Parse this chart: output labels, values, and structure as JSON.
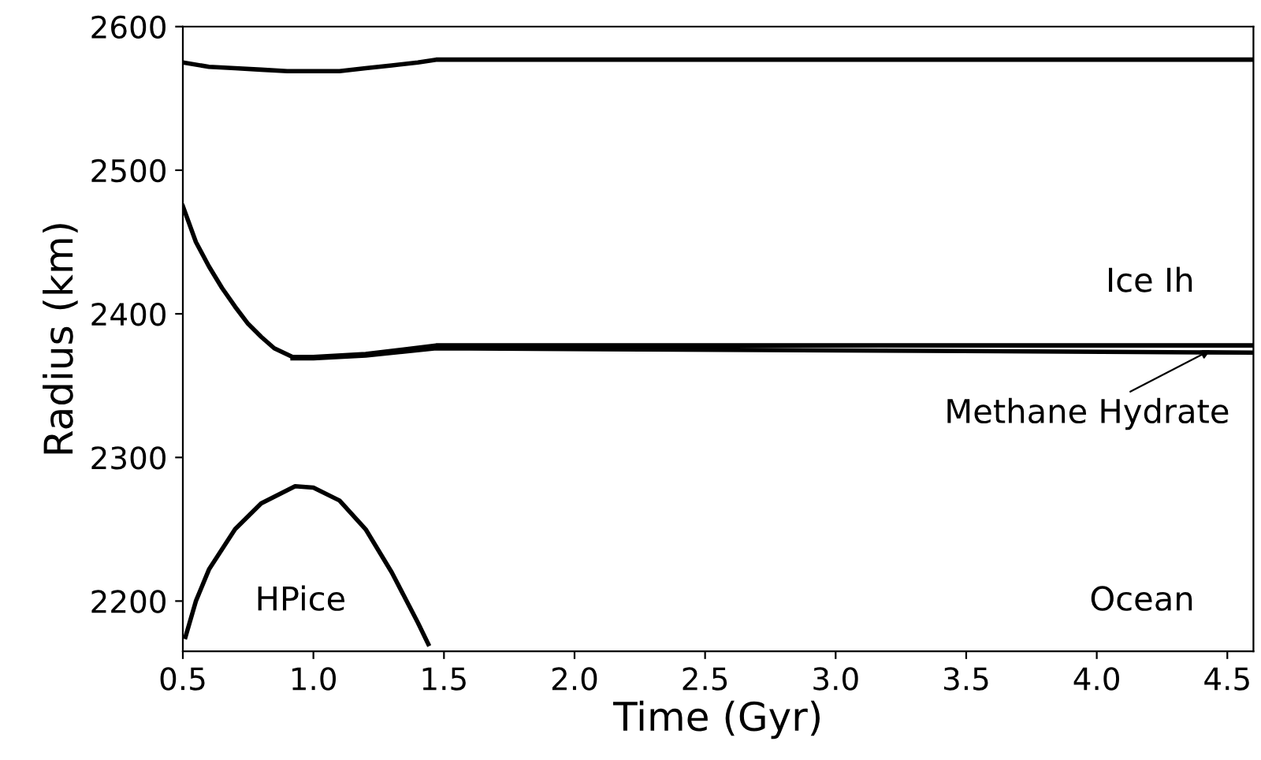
{
  "chart_data": {
    "type": "line",
    "xlabel": "Time (Gyr)",
    "ylabel": "Radius (km)",
    "xlim": [
      0.5,
      4.6
    ],
    "xticks": [
      0.5,
      {
        "value": 1,
        "label": "1.0"
      },
      1.5,
      {
        "value": 2,
        "label": "2.0"
      },
      2.5,
      {
        "value": 3,
        "label": "3.0"
      },
      3.5,
      {
        "value": 4,
        "label": "4.0"
      },
      4.5
    ],
    "ylim": [
      2165,
      2600
    ],
    "yticks": [
      2200,
      2300,
      2400,
      2500,
      2600
    ],
    "grid": false,
    "legend": false,
    "marker": "none",
    "line_style": "solid",
    "series": [
      {
        "color": "#000000",
        "x": [
          0.5,
          0.6,
          0.7,
          0.8,
          0.9,
          1.0,
          1.1,
          1.2,
          1.3,
          1.4,
          1.47,
          4.6
        ],
        "values": [
          2575,
          2572,
          2571,
          2570,
          2569,
          2569,
          2569,
          2571,
          2573,
          2575,
          2577,
          2577
        ]
      },
      {
        "color": "#000000",
        "x": [
          0.5,
          0.55,
          0.6,
          0.65,
          0.7,
          0.75,
          0.8,
          0.85,
          0.92,
          1.0,
          1.2,
          1.47,
          4.6
        ],
        "values": [
          2475,
          2450,
          2433,
          2418,
          2405,
          2393,
          2384,
          2376,
          2370,
          2370,
          2372,
          2378,
          2378
        ]
      },
      {
        "color": "#000000",
        "x": [
          0.92,
          1.0,
          1.2,
          1.47,
          4.6
        ],
        "values": [
          2369,
          2369,
          2371,
          2376,
          2373
        ]
      },
      {
        "color": "#000000",
        "x": [
          0.51,
          0.55,
          0.6,
          0.7,
          0.8,
          0.93,
          1.0,
          1.1,
          1.2,
          1.3,
          1.4,
          1.44
        ],
        "values": [
          2175,
          2200,
          2222,
          2250,
          2268,
          2280,
          2279,
          2270,
          2250,
          2220,
          2185,
          2170
        ]
      }
    ],
    "annotations": [
      "Ice Ih",
      {
        "text": "Methane Hydrate",
        "x": 4.45,
        "y": 2376
      },
      "HPice",
      "Ocean"
    ]
  }
}
